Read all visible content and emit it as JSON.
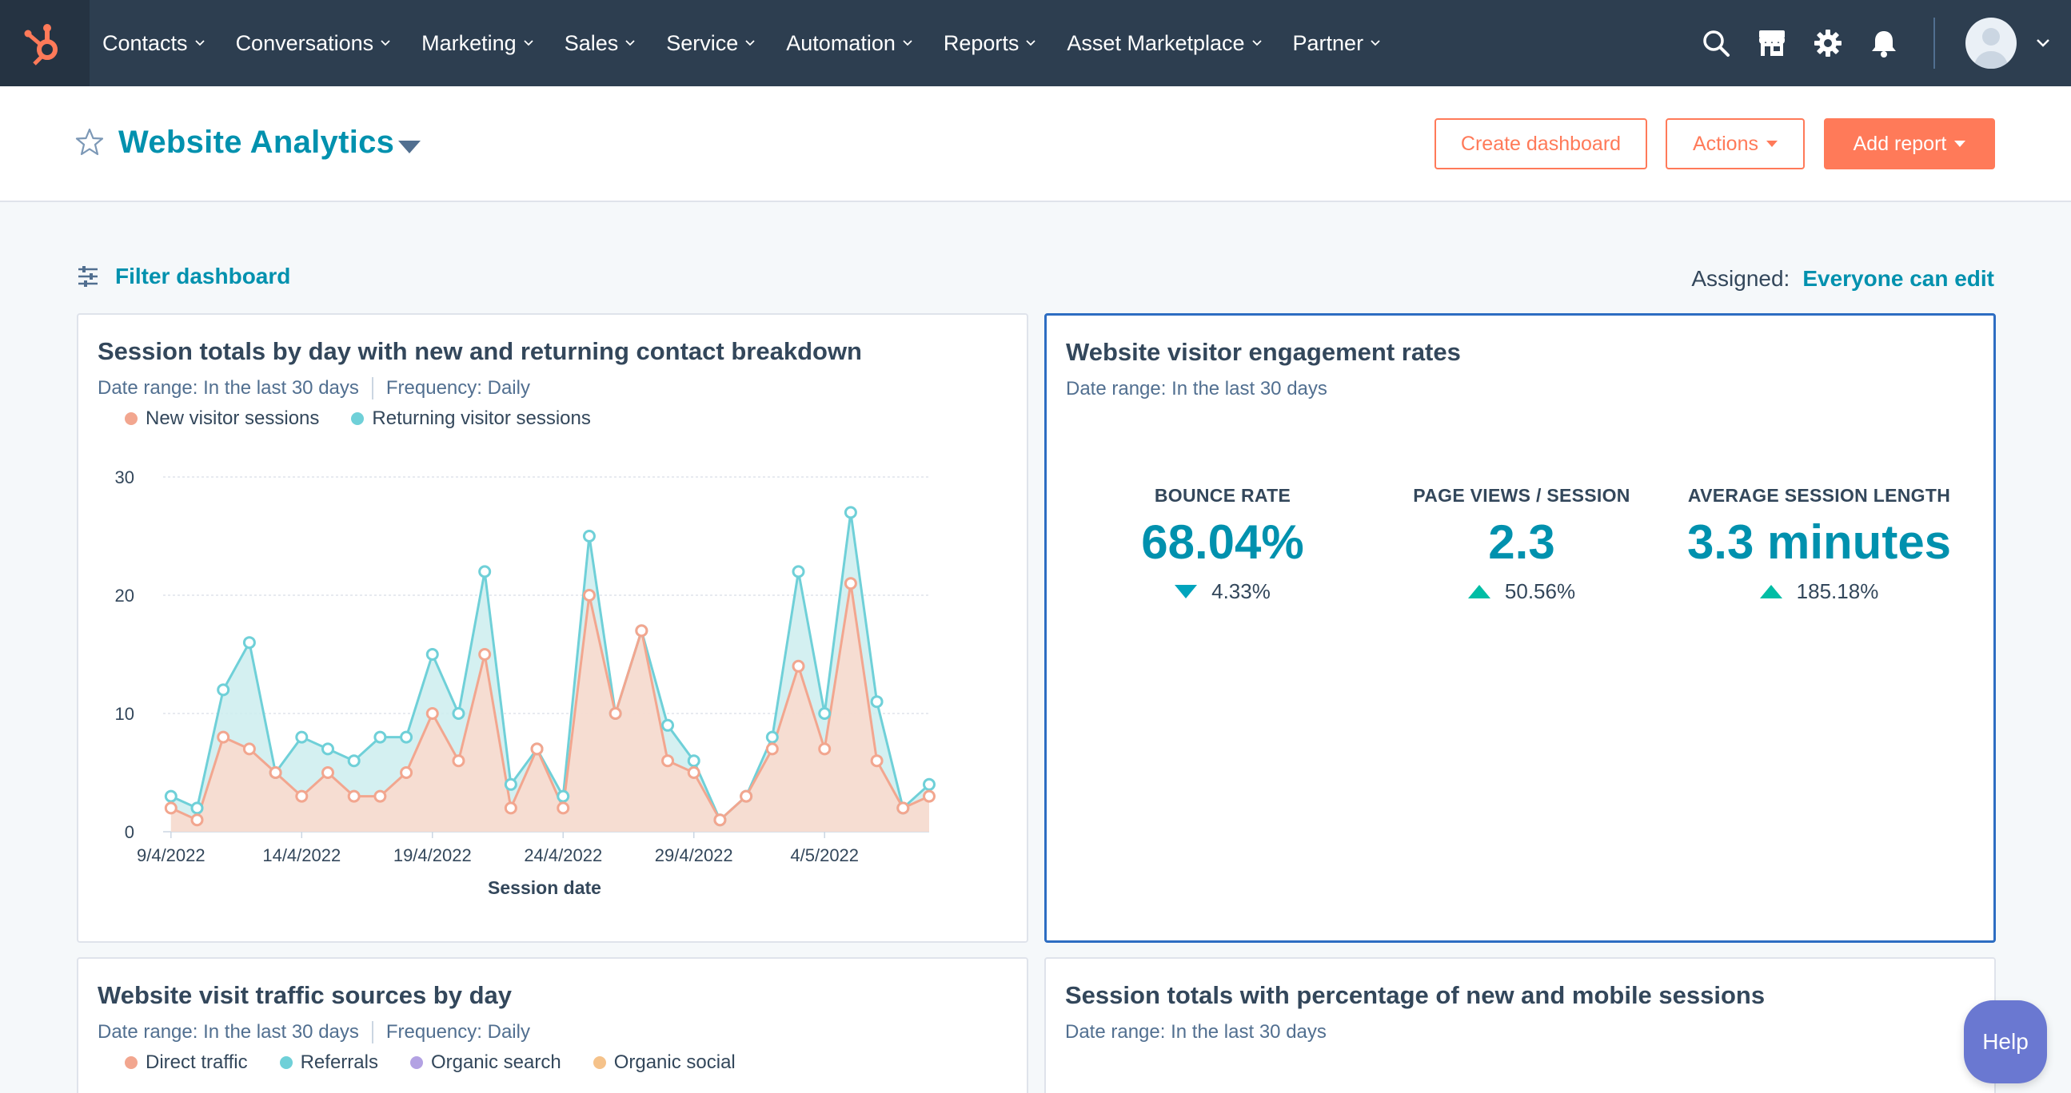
{
  "nav": {
    "items": [
      {
        "label": "Contacts"
      },
      {
        "label": "Conversations"
      },
      {
        "label": "Marketing"
      },
      {
        "label": "Sales"
      },
      {
        "label": "Service"
      },
      {
        "label": "Automation"
      },
      {
        "label": "Reports"
      },
      {
        "label": "Asset Marketplace"
      },
      {
        "label": "Partner"
      }
    ],
    "icons": [
      "search-icon",
      "marketplace-icon",
      "gear-icon",
      "bell-icon"
    ]
  },
  "header": {
    "title": "Website Analytics",
    "create_label": "Create dashboard",
    "actions_label": "Actions",
    "add_report_label": "Add report"
  },
  "filter": {
    "label": "Filter dashboard",
    "assigned_label": "Assigned:",
    "assigned_value": "Everyone can edit"
  },
  "cards": {
    "sessions": {
      "title": "Session totals by day with new and returning contact breakdown",
      "date_label": "Date range:",
      "date_value": "In the last 30 days",
      "freq_label": "Frequency:",
      "freq_value": "Daily"
    },
    "engagement": {
      "title": "Website visitor engagement rates",
      "date_label": "Date range:",
      "date_value": "In the last 30 days",
      "kpis": [
        {
          "label": "BOUNCE RATE",
          "value": "68.04%",
          "change": "4.33%",
          "direction": "down"
        },
        {
          "label": "PAGE VIEWS / SESSION",
          "value": "2.3",
          "change": "50.56%",
          "direction": "up"
        },
        {
          "label": "AVERAGE SESSION LENGTH",
          "value": "3.3 minutes",
          "change": "185.18%",
          "direction": "up"
        }
      ]
    },
    "traffic": {
      "title": "Website visit traffic sources by day",
      "date_label": "Date range:",
      "date_value": "In the last 30 days",
      "freq_label": "Frequency:",
      "freq_value": "Daily",
      "legend": [
        {
          "name": "Direct traffic",
          "color": "#f2a68f"
        },
        {
          "name": "Referrals",
          "color": "#6fd0d8"
        },
        {
          "name": "Organic search",
          "color": "#b3a2e3"
        },
        {
          "name": "Organic social",
          "color": "#f5c28a"
        }
      ]
    },
    "mobile": {
      "title": "Session totals with percentage of new and mobile sessions",
      "date_label": "Date range:",
      "date_value": "In the last 30 days"
    }
  },
  "help_label": "Help",
  "colors": {
    "nav_bg": "#2d3e50",
    "accent_orange": "#ff7a59",
    "link_teal": "#0091ae",
    "new_series": "#f2a68f",
    "returning_series": "#6fd0d8"
  },
  "chart_data": {
    "type": "area",
    "xlabel": "Session date",
    "ylabel": "",
    "ylim": [
      0,
      30
    ],
    "yticks": [
      0,
      10,
      20,
      30
    ],
    "x_tick_labels": [
      "9/4/2022",
      "14/4/2022",
      "19/4/2022",
      "24/4/2022",
      "29/4/2022",
      "4/5/2022"
    ],
    "x": [
      "9/4/2022",
      "10/4/2022",
      "11/4/2022",
      "12/4/2022",
      "13/4/2022",
      "14/4/2022",
      "15/4/2022",
      "16/4/2022",
      "17/4/2022",
      "18/4/2022",
      "19/4/2022",
      "20/4/2022",
      "21/4/2022",
      "22/4/2022",
      "23/4/2022",
      "24/4/2022",
      "25/4/2022",
      "26/4/2022",
      "27/4/2022",
      "28/4/2022",
      "29/4/2022",
      "30/4/2022",
      "1/5/2022",
      "2/5/2022",
      "3/5/2022",
      "4/5/2022",
      "5/5/2022",
      "6/5/2022",
      "7/5/2022",
      "8/5/2022"
    ],
    "series": [
      {
        "name": "New visitor sessions",
        "color": "#f2a68f",
        "values": [
          2,
          1,
          8,
          7,
          5,
          3,
          5,
          3,
          3,
          5,
          10,
          6,
          15,
          2,
          7,
          2,
          20,
          10,
          17,
          6,
          5,
          1,
          3,
          7,
          14,
          7,
          21,
          6,
          2,
          3
        ]
      },
      {
        "name": "Returning visitor sessions",
        "color": "#6fd0d8",
        "values": [
          3,
          2,
          12,
          16,
          5,
          8,
          7,
          6,
          8,
          8,
          15,
          10,
          22,
          4,
          7,
          3,
          25,
          10,
          17,
          9,
          6,
          1,
          3,
          8,
          22,
          10,
          27,
          11,
          2,
          4
        ]
      }
    ],
    "legend_position": "top-left",
    "grid": true
  }
}
